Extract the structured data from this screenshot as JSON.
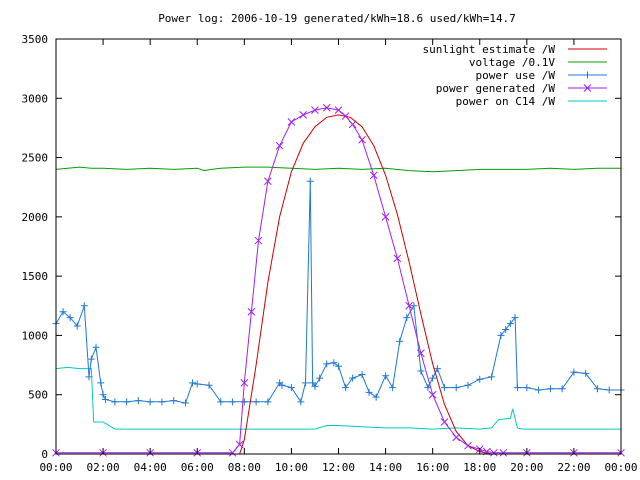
{
  "chart_data": {
    "type": "line",
    "title": "Power log: 2006-10-19 generated/kWh=18.6 used/kWh=14.7",
    "xlabel": "",
    "ylabel": "",
    "x_unit": "hours",
    "xlim": [
      0,
      24
    ],
    "ylim": [
      0,
      3500
    ],
    "xticks": [
      0,
      2,
      4,
      6,
      8,
      10,
      12,
      14,
      16,
      18,
      20,
      22,
      24
    ],
    "xtick_labels": [
      "00:00",
      "02:00",
      "04:00",
      "06:00",
      "08:00",
      "10:00",
      "12:00",
      "14:00",
      "16:00",
      "18:00",
      "20:00",
      "22:00",
      "00:00"
    ],
    "yticks": [
      0,
      500,
      1000,
      1500,
      2000,
      2500,
      3000,
      3500
    ],
    "ytick_labels": [
      "0",
      "500",
      "1000",
      "1500",
      "2000",
      "2500",
      "3000",
      "3500"
    ],
    "grid": false,
    "legend_position": "top-right",
    "series": [
      {
        "name": "sunlight estimate /W",
        "color": "#cc0000",
        "marker": "none",
        "x": [
          0,
          7.8,
          8.0,
          8.5,
          9.0,
          9.5,
          10.0,
          10.5,
          11.0,
          11.5,
          12.0,
          12.5,
          13.0,
          13.5,
          14.0,
          14.5,
          15.0,
          15.5,
          16.0,
          16.5,
          17.0,
          17.5,
          18.0,
          18.5,
          24
        ],
        "y": [
          0,
          0,
          120,
          750,
          1450,
          2000,
          2380,
          2620,
          2760,
          2840,
          2860,
          2840,
          2760,
          2600,
          2350,
          2020,
          1620,
          1180,
          760,
          420,
          190,
          70,
          20,
          0,
          0
        ]
      },
      {
        "name": "voltage /0.1V",
        "color": "#00a000",
        "marker": "none",
        "x": [
          0,
          0.5,
          1.0,
          1.5,
          2.0,
          3.0,
          4.0,
          5.0,
          6.0,
          6.3,
          6.6,
          7.0,
          8.0,
          9.0,
          10.0,
          11.0,
          12.0,
          13.0,
          14.0,
          15.0,
          16.0,
          17.0,
          18.0,
          19.0,
          20.0,
          21.0,
          22.0,
          23.0,
          24.0
        ],
        "y": [
          2400,
          2410,
          2420,
          2410,
          2410,
          2400,
          2410,
          2400,
          2410,
          2390,
          2400,
          2410,
          2420,
          2420,
          2410,
          2400,
          2410,
          2400,
          2410,
          2390,
          2380,
          2390,
          2400,
          2400,
          2400,
          2410,
          2400,
          2410,
          2410
        ]
      },
      {
        "name": "power use /W",
        "color": "#1f78d4",
        "marker": "plus",
        "x": [
          0,
          0.3,
          0.6,
          0.9,
          1.2,
          1.4,
          1.5,
          1.7,
          1.9,
          2.0,
          2.1,
          2.5,
          3.0,
          3.5,
          4.0,
          4.5,
          5.0,
          5.5,
          5.8,
          6.0,
          6.5,
          7.0,
          7.5,
          8.0,
          8.5,
          9.0,
          9.5,
          9.6,
          10.0,
          10.4,
          10.6,
          10.8,
          10.9,
          11.0,
          11.2,
          11.5,
          11.8,
          12.0,
          12.3,
          12.6,
          13.0,
          13.3,
          13.6,
          14.0,
          14.3,
          14.6,
          14.9,
          15.2,
          15.5,
          15.8,
          16.0,
          16.2,
          16.5,
          17.0,
          17.5,
          18.0,
          18.5,
          18.9,
          19.1,
          19.3,
          19.5,
          19.6,
          20.0,
          20.5,
          21.0,
          21.5,
          22.0,
          22.5,
          23.0,
          23.5,
          24.0
        ],
        "y": [
          1100,
          1200,
          1150,
          1080,
          1250,
          650,
          800,
          900,
          600,
          500,
          460,
          440,
          440,
          450,
          440,
          440,
          450,
          430,
          600,
          590,
          580,
          440,
          440,
          440,
          440,
          440,
          600,
          580,
          560,
          440,
          600,
          2300,
          600,
          570,
          640,
          760,
          770,
          740,
          560,
          640,
          670,
          520,
          480,
          660,
          560,
          950,
          1150,
          1250,
          700,
          560,
          640,
          720,
          560,
          560,
          580,
          630,
          650,
          1000,
          1050,
          1100,
          1150,
          560,
          560,
          540,
          550,
          550,
          690,
          680,
          550,
          540,
          540
        ]
      },
      {
        "name": "power generated /W",
        "color": "#a020f0",
        "marker": "cross",
        "x": [
          0,
          2,
          4,
          6,
          7.5,
          7.8,
          8.0,
          8.3,
          8.6,
          9.0,
          9.5,
          10.0,
          10.5,
          11.0,
          11.5,
          12.0,
          12.3,
          12.6,
          13.0,
          13.5,
          14.0,
          14.5,
          15.0,
          15.5,
          16.0,
          16.5,
          17.0,
          17.5,
          18.0,
          18.3,
          18.6,
          19.0,
          20.0,
          22.0,
          24.0
        ],
        "y": [
          10,
          10,
          10,
          10,
          10,
          80,
          600,
          1200,
          1800,
          2300,
          2600,
          2800,
          2860,
          2900,
          2920,
          2900,
          2850,
          2780,
          2650,
          2350,
          2000,
          1650,
          1250,
          850,
          500,
          270,
          140,
          70,
          40,
          20,
          10,
          10,
          10,
          10,
          10
        ]
      },
      {
        "name": "power on C14 /W",
        "color": "#00c8c8",
        "marker": "none",
        "x": [
          0,
          0.5,
          1.0,
          1.5,
          1.6,
          2.0,
          2.5,
          4.0,
          6.0,
          8.0,
          9.0,
          10.0,
          11.0,
          11.5,
          12.0,
          13.0,
          14.0,
          15.0,
          16.0,
          17.0,
          18.0,
          18.5,
          18.8,
          19.3,
          19.4,
          19.6,
          19.8,
          20.0,
          22.0,
          24.0
        ],
        "y": [
          720,
          730,
          720,
          720,
          270,
          270,
          210,
          210,
          210,
          210,
          210,
          210,
          210,
          240,
          240,
          230,
          220,
          220,
          210,
          220,
          210,
          220,
          290,
          300,
          380,
          220,
          210,
          210,
          210,
          210
        ]
      }
    ]
  }
}
